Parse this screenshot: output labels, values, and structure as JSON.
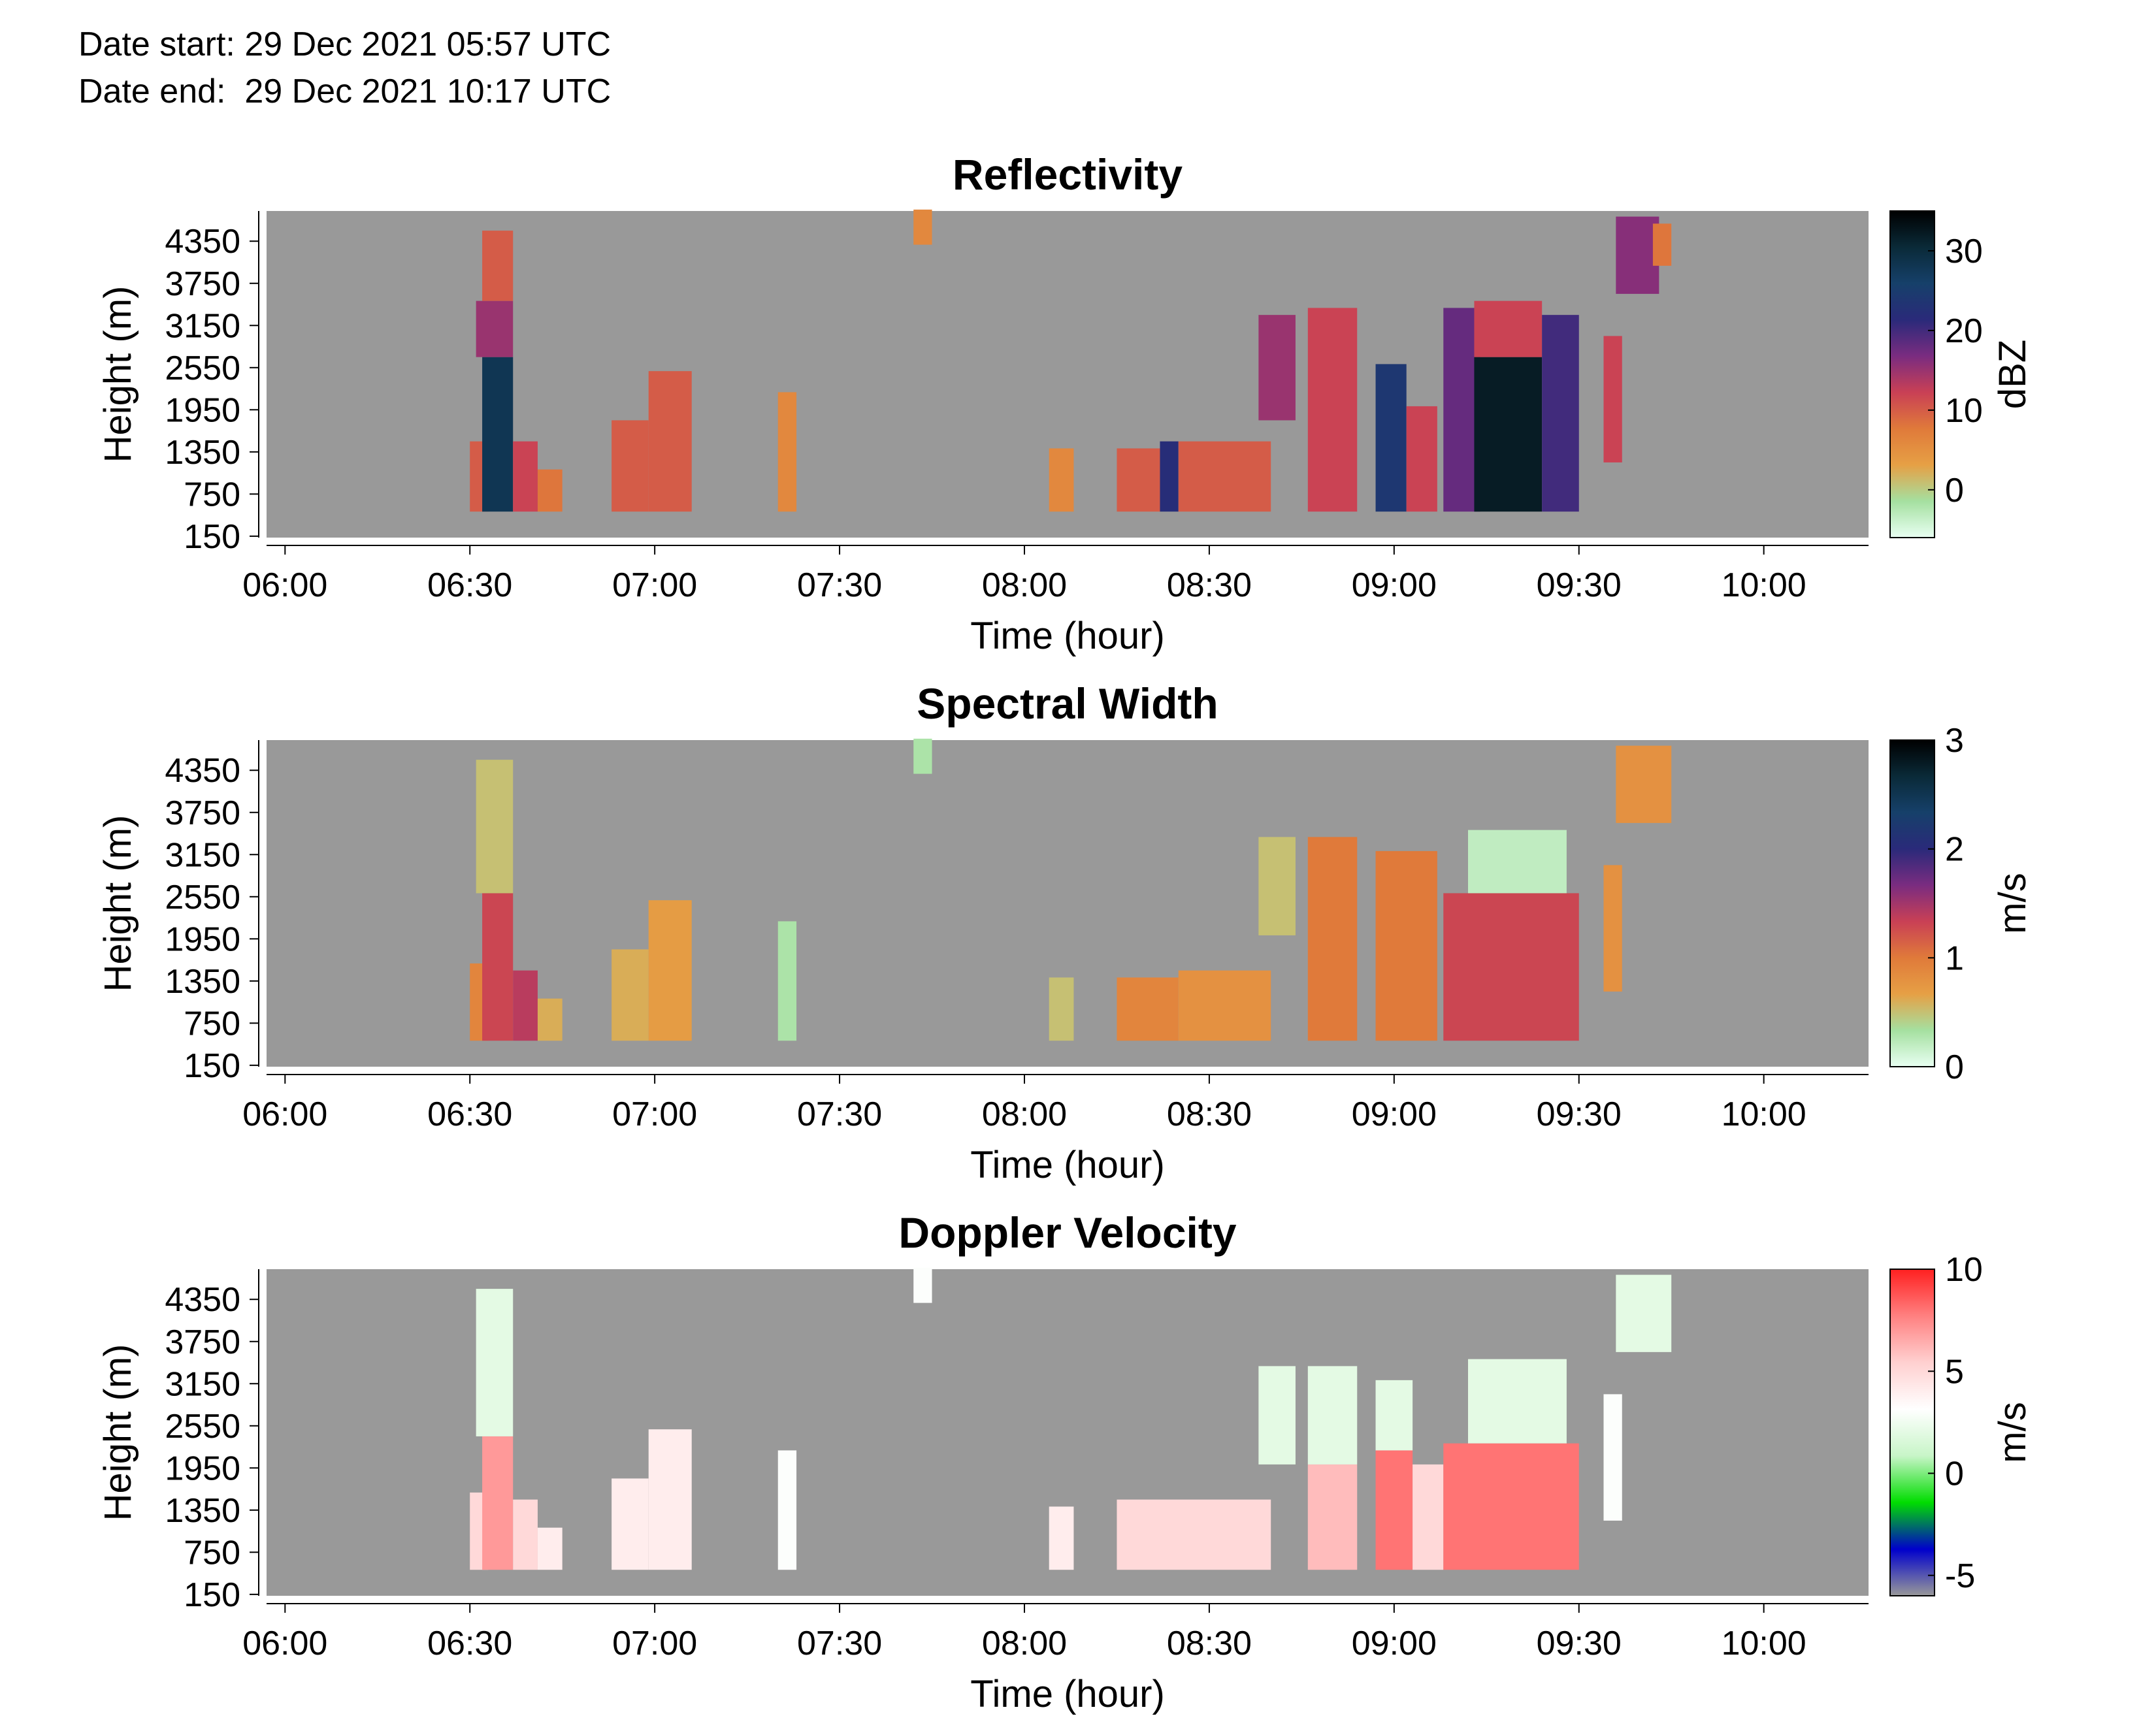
{
  "header": {
    "date_start": "Date start: 29 Dec 2021 05:57 UTC",
    "date_end": "Date end:  29 Dec 2021 10:17 UTC"
  },
  "chart_data": [
    {
      "type": "heatmap",
      "title": "Reflectivity",
      "xlabel": "Time (hour)",
      "ylabel": "Height (m)",
      "x_ticks": [
        "06:00",
        "06:30",
        "07:00",
        "07:30",
        "08:00",
        "08:30",
        "09:00",
        "09:30",
        "10:00"
      ],
      "y_ticks": [
        "150",
        "750",
        "1350",
        "1950",
        "2550",
        "3150",
        "3750",
        "4350"
      ],
      "colorbar": {
        "label": "dBZ",
        "ticks": [
          "0",
          "10",
          "20",
          "30"
        ],
        "range": [
          -6,
          35
        ],
        "colors": [
          "#e8fff2",
          "#a5e0a0",
          "#e6a045",
          "#e07a3a",
          "#c94055",
          "#7a2c80",
          "#2a2a7a",
          "#16406a",
          "#0a2a38",
          "#000000"
        ]
      },
      "background": "#999999",
      "cells": [
        {
          "t0": "06:30",
          "t1": "06:33",
          "h0": 500,
          "h1": 1500,
          "v": 10
        },
        {
          "t0": "06:32",
          "t1": "06:37",
          "h0": 500,
          "h1": 2700,
          "v": 28
        },
        {
          "t0": "06:31",
          "t1": "06:37",
          "h0": 2700,
          "h1": 3500,
          "v": 15
        },
        {
          "t0": "06:32",
          "t1": "06:37",
          "h0": 3500,
          "h1": 4500,
          "v": 10
        },
        {
          "t0": "06:37",
          "t1": "06:41",
          "h0": 500,
          "h1": 1500,
          "v": 12
        },
        {
          "t0": "06:41",
          "t1": "06:45",
          "h0": 500,
          "h1": 1100,
          "v": 8
        },
        {
          "t0": "06:53",
          "t1": "06:59",
          "h0": 500,
          "h1": 1800,
          "v": 10
        },
        {
          "t0": "06:59",
          "t1": "07:06",
          "h0": 500,
          "h1": 2500,
          "v": 10
        },
        {
          "t0": "07:20",
          "t1": "07:23",
          "h0": 500,
          "h1": 2200,
          "v": 6
        },
        {
          "t0": "07:42",
          "t1": "07:45",
          "h0": 4300,
          "h1": 4800,
          "v": 6
        },
        {
          "t0": "08:04",
          "t1": "08:08",
          "h0": 500,
          "h1": 1400,
          "v": 6
        },
        {
          "t0": "08:15",
          "t1": "08:22",
          "h0": 500,
          "h1": 1400,
          "v": 10
        },
        {
          "t0": "08:22",
          "t1": "08:25",
          "h0": 500,
          "h1": 1500,
          "v": 22
        },
        {
          "t0": "08:25",
          "t1": "08:40",
          "h0": 500,
          "h1": 1500,
          "v": 10
        },
        {
          "t0": "08:38",
          "t1": "08:44",
          "h0": 1800,
          "h1": 3300,
          "v": 15
        },
        {
          "t0": "08:46",
          "t1": "08:54",
          "h0": 500,
          "h1": 3400,
          "v": 12
        },
        {
          "t0": "08:57",
          "t1": "09:02",
          "h0": 500,
          "h1": 2600,
          "v": 24
        },
        {
          "t0": "09:02",
          "t1": "09:07",
          "h0": 500,
          "h1": 2000,
          "v": 12
        },
        {
          "t0": "09:08",
          "t1": "09:14",
          "h0": 500,
          "h1": 3400,
          "v": 18
        },
        {
          "t0": "09:13",
          "t1": "09:24",
          "h0": 500,
          "h1": 2700,
          "v": 32
        },
        {
          "t0": "09:13",
          "t1": "09:24",
          "h0": 2700,
          "h1": 3500,
          "v": 12
        },
        {
          "t0": "09:24",
          "t1": "09:30",
          "h0": 500,
          "h1": 3300,
          "v": 20
        },
        {
          "t0": "09:34",
          "t1": "09:37",
          "h0": 1200,
          "h1": 3000,
          "v": 12
        },
        {
          "t0": "09:36",
          "t1": "09:43",
          "h0": 3600,
          "h1": 4700,
          "v": 16
        },
        {
          "t0": "09:42",
          "t1": "09:45",
          "h0": 4000,
          "h1": 4600,
          "v": 8
        }
      ]
    },
    {
      "type": "heatmap",
      "title": "Spectral Width",
      "xlabel": "Time (hour)",
      "ylabel": "Height (m)",
      "x_ticks": [
        "06:00",
        "06:30",
        "07:00",
        "07:30",
        "08:00",
        "08:30",
        "09:00",
        "09:30",
        "10:00"
      ],
      "y_ticks": [
        "150",
        "750",
        "1350",
        "1950",
        "2550",
        "3150",
        "3750",
        "4350"
      ],
      "colorbar": {
        "label": "m/s",
        "ticks": [
          "0",
          "1",
          "2",
          "3"
        ],
        "range": [
          0,
          3
        ],
        "colors": [
          "#e8fff2",
          "#a5e0a0",
          "#e6a045",
          "#e07a3a",
          "#c94055",
          "#7a2c80",
          "#2a2a7a",
          "#16406a",
          "#0a2a38",
          "#000000"
        ]
      },
      "background": "#999999",
      "cells": [
        {
          "t0": "06:30",
          "t1": "06:33",
          "h0": 500,
          "h1": 1600,
          "v": 0.9
        },
        {
          "t0": "06:32",
          "t1": "06:37",
          "h0": 500,
          "h1": 2600,
          "v": 1.3
        },
        {
          "t0": "06:31",
          "t1": "06:37",
          "h0": 2600,
          "h1": 4500,
          "v": 0.5
        },
        {
          "t0": "06:37",
          "t1": "06:41",
          "h0": 500,
          "h1": 1500,
          "v": 1.4
        },
        {
          "t0": "06:41",
          "t1": "06:45",
          "h0": 500,
          "h1": 1100,
          "v": 0.6
        },
        {
          "t0": "06:53",
          "t1": "06:59",
          "h0": 500,
          "h1": 1800,
          "v": 0.6
        },
        {
          "t0": "06:59",
          "t1": "07:06",
          "h0": 500,
          "h1": 2500,
          "v": 0.7
        },
        {
          "t0": "07:20",
          "t1": "07:23",
          "h0": 500,
          "h1": 2200,
          "v": 0.3
        },
        {
          "t0": "07:42",
          "t1": "07:45",
          "h0": 4300,
          "h1": 4800,
          "v": 0.3
        },
        {
          "t0": "08:04",
          "t1": "08:08",
          "h0": 500,
          "h1": 1400,
          "v": 0.5
        },
        {
          "t0": "08:15",
          "t1": "08:25",
          "h0": 500,
          "h1": 1400,
          "v": 0.9
        },
        {
          "t0": "08:25",
          "t1": "08:40",
          "h0": 500,
          "h1": 1500,
          "v": 0.8
        },
        {
          "t0": "08:38",
          "t1": "08:44",
          "h0": 2000,
          "h1": 3400,
          "v": 0.5
        },
        {
          "t0": "08:46",
          "t1": "08:54",
          "h0": 500,
          "h1": 3400,
          "v": 1.0
        },
        {
          "t0": "08:57",
          "t1": "09:07",
          "h0": 500,
          "h1": 3200,
          "v": 1.0
        },
        {
          "t0": "09:08",
          "t1": "09:30",
          "h0": 500,
          "h1": 2600,
          "v": 1.3
        },
        {
          "t0": "09:12",
          "t1": "09:28",
          "h0": 2600,
          "h1": 3500,
          "v": 0.2
        },
        {
          "t0": "09:34",
          "t1": "09:37",
          "h0": 1200,
          "h1": 3000,
          "v": 0.8
        },
        {
          "t0": "09:36",
          "t1": "09:45",
          "h0": 3600,
          "h1": 4700,
          "v": 0.8
        }
      ]
    },
    {
      "type": "heatmap",
      "title": "Doppler Velocity",
      "xlabel": "Time (hour)",
      "ylabel": "Height (m)",
      "x_ticks": [
        "06:00",
        "06:30",
        "07:00",
        "07:30",
        "08:00",
        "08:30",
        "09:00",
        "09:30",
        "10:00"
      ],
      "y_ticks": [
        "150",
        "750",
        "1350",
        "1950",
        "2550",
        "3150",
        "3750",
        "4350"
      ],
      "colorbar": {
        "label": "m/s",
        "ticks": [
          "-5",
          "0",
          "5",
          "10"
        ],
        "range": [
          -6,
          10
        ],
        "colors": [
          "#999999",
          "#0000cc",
          "#00dd00",
          "#c8f5c8",
          "#ffffff",
          "#ffd0d0",
          "#ff8080",
          "#ff2020"
        ]
      },
      "background": "#999999",
      "cells": [
        {
          "t0": "06:30",
          "t1": "06:33",
          "h0": 500,
          "h1": 1600,
          "v": 5
        },
        {
          "t0": "06:32",
          "t1": "06:37",
          "h0": 500,
          "h1": 2400,
          "v": 7
        },
        {
          "t0": "06:31",
          "t1": "06:37",
          "h0": 2400,
          "h1": 4500,
          "v": 2
        },
        {
          "t0": "06:37",
          "t1": "06:41",
          "h0": 500,
          "h1": 1500,
          "v": 5
        },
        {
          "t0": "06:41",
          "t1": "06:45",
          "h0": 500,
          "h1": 1100,
          "v": 4
        },
        {
          "t0": "06:53",
          "t1": "06:59",
          "h0": 500,
          "h1": 1800,
          "v": 4
        },
        {
          "t0": "06:59",
          "t1": "07:06",
          "h0": 500,
          "h1": 2500,
          "v": 4
        },
        {
          "t0": "07:20",
          "t1": "07:23",
          "h0": 500,
          "h1": 2200,
          "v": 3
        },
        {
          "t0": "07:42",
          "t1": "07:45",
          "h0": 4300,
          "h1": 4800,
          "v": 3
        },
        {
          "t0": "08:04",
          "t1": "08:08",
          "h0": 500,
          "h1": 1400,
          "v": 4
        },
        {
          "t0": "08:15",
          "t1": "08:40",
          "h0": 500,
          "h1": 1500,
          "v": 5
        },
        {
          "t0": "08:38",
          "t1": "08:44",
          "h0": 2000,
          "h1": 3400,
          "v": 2
        },
        {
          "t0": "08:46",
          "t1": "08:54",
          "h0": 500,
          "h1": 2000,
          "v": 6
        },
        {
          "t0": "08:46",
          "t1": "08:54",
          "h0": 2000,
          "h1": 3400,
          "v": 2
        },
        {
          "t0": "08:57",
          "t1": "09:03",
          "h0": 500,
          "h1": 2200,
          "v": 8
        },
        {
          "t0": "08:57",
          "t1": "09:03",
          "h0": 2200,
          "h1": 3200,
          "v": 2
        },
        {
          "t0": "09:03",
          "t1": "09:08",
          "h0": 500,
          "h1": 2000,
          "v": 5
        },
        {
          "t0": "09:08",
          "t1": "09:30",
          "h0": 500,
          "h1": 2300,
          "v": 8
        },
        {
          "t0": "09:12",
          "t1": "09:28",
          "h0": 2300,
          "h1": 3500,
          "v": 2
        },
        {
          "t0": "09:34",
          "t1": "09:37",
          "h0": 1200,
          "h1": 3000,
          "v": 3
        },
        {
          "t0": "09:36",
          "t1": "09:45",
          "h0": 3600,
          "h1": 4700,
          "v": 2
        }
      ]
    }
  ]
}
